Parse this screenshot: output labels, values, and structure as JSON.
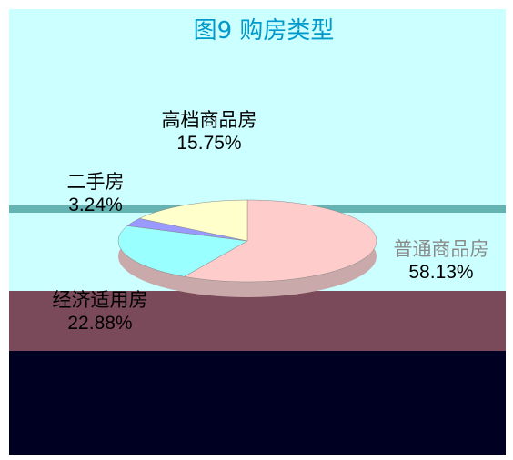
{
  "chart_data": {
    "type": "pie",
    "title": "图9 购房类型",
    "categories": [
      "普通商品房",
      "经济适用房",
      "二手房",
      "高档商品房"
    ],
    "values": [
      58.13,
      22.88,
      3.24,
      15.75
    ],
    "value_labels": [
      "58.13%",
      "22.88%",
      "3.24%",
      "15.75%"
    ],
    "colors": [
      "#ffcccc",
      "#99ffff",
      "#9999ff",
      "#ffffcc"
    ]
  }
}
